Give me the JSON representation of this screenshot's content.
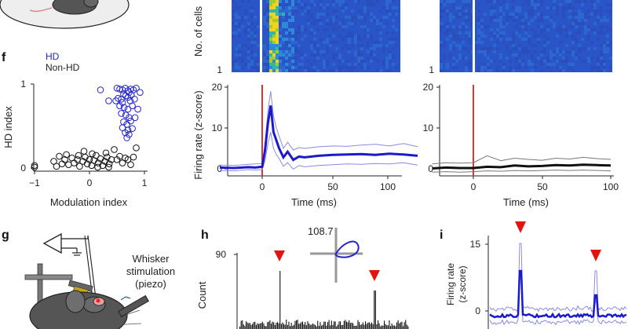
{
  "colors": {
    "hd": "#2222cc",
    "nonhd": "#111111",
    "stim": "#e53333",
    "marker": "#e3140f",
    "heat_bg": "#2a55c8"
  },
  "panels": {
    "f": {
      "letter": "f",
      "legend": [
        "HD",
        "Non-HD"
      ],
      "xlabel": "Modulation index",
      "ylabel": "HD index",
      "xticks": [
        "−1",
        "0",
        "1"
      ],
      "yticks": [
        "0",
        "1"
      ]
    },
    "heat_left": {
      "ylabel": "No. of cells",
      "ytick_bottom": "1"
    },
    "heat_right": {
      "ytick_bottom": "1"
    },
    "rate_left": {
      "ylabel": "Firing rate (z-score)",
      "xlabel": "Time (ms)",
      "yticks": [
        "0",
        "10",
        "20"
      ],
      "xticks": [
        "0",
        "50",
        "100"
      ]
    },
    "rate_right": {
      "xlabel": "Time (ms)",
      "yticks": [
        "0",
        "10",
        "20"
      ],
      "xticks": [
        "0",
        "50",
        "100"
      ]
    },
    "g": {
      "letter": "g",
      "caption": [
        "Whisker",
        "stimulation",
        "(piezo)"
      ]
    },
    "h": {
      "letter": "h",
      "ylabel": "Count",
      "ytick": "90",
      "peak_label": "108.7"
    },
    "i": {
      "letter": "i",
      "ylabel": [
        "Firing rate",
        "(z-score)"
      ],
      "yticks": [
        "0",
        "15"
      ]
    }
  },
  "chart_data": [
    {
      "type": "scatter",
      "xlabel": "Modulation index",
      "ylabel": "HD index",
      "xlim": [
        -1,
        1
      ],
      "ylim": [
        0,
        1
      ],
      "series": [
        {
          "name": "HD",
          "points": [
            [
              0.5,
              0.95
            ],
            [
              0.55,
              0.94
            ],
            [
              0.6,
              0.93
            ],
            [
              0.65,
              0.95
            ],
            [
              0.7,
              0.92
            ],
            [
              0.75,
              0.94
            ],
            [
              0.8,
              0.93
            ],
            [
              0.85,
              0.95
            ],
            [
              0.72,
              0.9
            ],
            [
              0.62,
              0.88
            ],
            [
              0.66,
              0.86
            ],
            [
              0.52,
              0.83
            ],
            [
              0.58,
              0.82
            ],
            [
              0.7,
              0.84
            ],
            [
              0.76,
              0.87
            ],
            [
              0.48,
              0.8
            ],
            [
              0.6,
              0.78
            ],
            [
              0.74,
              0.8
            ],
            [
              0.82,
              0.82
            ],
            [
              0.55,
              0.74
            ],
            [
              0.63,
              0.72
            ],
            [
              0.7,
              0.7
            ],
            [
              0.78,
              0.74
            ],
            [
              0.58,
              0.65
            ],
            [
              0.66,
              0.63
            ],
            [
              0.72,
              0.6
            ],
            [
              0.62,
              0.55
            ],
            [
              0.68,
              0.52
            ],
            [
              0.75,
              0.56
            ],
            [
              0.6,
              0.48
            ],
            [
              0.7,
              0.45
            ],
            [
              0.78,
              0.47
            ],
            [
              0.65,
              0.42
            ],
            [
              0.72,
              0.4
            ],
            [
              0.68,
              0.36
            ],
            [
              0.2,
              0.93
            ],
            [
              0.35,
              0.8
            ],
            [
              0.88,
              0.7
            ],
            [
              0.92,
              0.9
            ],
            [
              0.83,
              0.6
            ]
          ]
        },
        {
          "name": "Non-HD",
          "points": [
            [
              -1.0,
              0.03
            ],
            [
              -1.0,
              0.01
            ],
            [
              -0.65,
              0.08
            ],
            [
              -0.55,
              0.14
            ],
            [
              -0.5,
              0.05
            ],
            [
              -0.45,
              0.1
            ],
            [
              -0.38,
              0.04
            ],
            [
              -0.32,
              0.12
            ],
            [
              -0.28,
              0.06
            ],
            [
              -0.22,
              0.1
            ],
            [
              -0.18,
              0.02
            ],
            [
              -0.12,
              0.08
            ],
            [
              -0.08,
              0.13
            ],
            [
              -0.04,
              0.05
            ],
            [
              0.0,
              0.1
            ],
            [
              0.04,
              0.03
            ],
            [
              0.08,
              0.09
            ],
            [
              0.12,
              0.15
            ],
            [
              0.16,
              0.06
            ],
            [
              0.2,
              0.11
            ],
            [
              0.24,
              0.03
            ],
            [
              0.28,
              0.08
            ],
            [
              0.32,
              0.13
            ],
            [
              0.36,
              0.05
            ],
            [
              0.4,
              0.1
            ],
            [
              -0.6,
              0.02
            ],
            [
              -0.42,
              0.16
            ],
            [
              -0.2,
              0.15
            ],
            [
              0.05,
              0.17
            ],
            [
              0.15,
              0.01
            ],
            [
              0.3,
              0.18
            ],
            [
              0.5,
              0.1
            ],
            [
              0.55,
              0.14
            ],
            [
              0.6,
              0.06
            ],
            [
              0.65,
              0.12
            ],
            [
              0.7,
              0.1
            ],
            [
              0.75,
              0.04
            ],
            [
              0.8,
              0.13
            ],
            [
              0.85,
              0.24
            ],
            [
              -0.1,
              0.2
            ],
            [
              0.45,
              0.22
            ],
            [
              0.35,
              0.01
            ]
          ]
        }
      ]
    },
    {
      "type": "line",
      "xlabel": "Time (ms)",
      "ylabel": "Firing rate (z-score)",
      "xlim": [
        -30,
        110
      ],
      "ylim": [
        0,
        20
      ],
      "x": [
        -30,
        -20,
        -10,
        -5,
        0,
        2,
        4,
        6,
        8,
        10,
        12,
        15,
        18,
        22,
        26,
        30,
        40,
        50,
        60,
        70,
        80,
        90,
        100,
        110
      ],
      "series": [
        {
          "name": "",
          "values": [
            0.3,
            0.2,
            0.4,
            0.3,
            0.5,
            4.5,
            11,
            15.5,
            9,
            7,
            5,
            2.8,
            4.2,
            2.2,
            3,
            2.8,
            3.2,
            3.4,
            3.5,
            3.6,
            3.4,
            3.7,
            3.5,
            3.2
          ]
        },
        {
          "name": "",
          "values": [
            0.9,
            0.8,
            1.1,
            1.2,
            1.3,
            6,
            14,
            19,
            13,
            10,
            8,
            5,
            6.5,
            4.6,
            5.2,
            5,
            5.4,
            5.6,
            5.5,
            5.8,
            6,
            5.6,
            6.2,
            5.4
          ]
        },
        {
          "name": "",
          "values": [
            -0.4,
            -0.5,
            -0.2,
            -0.3,
            -0.2,
            2,
            6,
            9,
            5,
            3.5,
            2.5,
            0.6,
            1.5,
            -0.1,
            0.8,
            0.5,
            0.8,
            1,
            1.2,
            1.1,
            1.3,
            1.2,
            1.5,
            0.9
          ]
        }
      ]
    },
    {
      "type": "line",
      "xlabel": "Time (ms)",
      "xlim": [
        -30,
        100
      ],
      "ylim": [
        0,
        20
      ],
      "x": [
        -30,
        -20,
        -10,
        0,
        10,
        20,
        30,
        40,
        50,
        60,
        70,
        80,
        90,
        100
      ],
      "series": [
        {
          "name": "",
          "values": [
            0.1,
            0.3,
            0.2,
            0.2,
            0.5,
            0.4,
            0.8,
            0.6,
            0.7,
            0.9,
            0.8,
            1.0,
            0.9,
            0.8
          ]
        },
        {
          "name": "",
          "values": [
            1.2,
            1.5,
            1.4,
            1.5,
            3.2,
            2.0,
            2.6,
            2.3,
            2.1,
            2.6,
            2.4,
            2.8,
            2.5,
            2.3
          ]
        },
        {
          "name": "",
          "values": [
            -0.8,
            -0.7,
            -0.8,
            -0.7,
            -0.5,
            -0.6,
            -0.4,
            -0.5,
            -0.4,
            -0.3,
            -0.4,
            -0.3,
            -0.4,
            -0.5
          ]
        }
      ]
    }
  ]
}
